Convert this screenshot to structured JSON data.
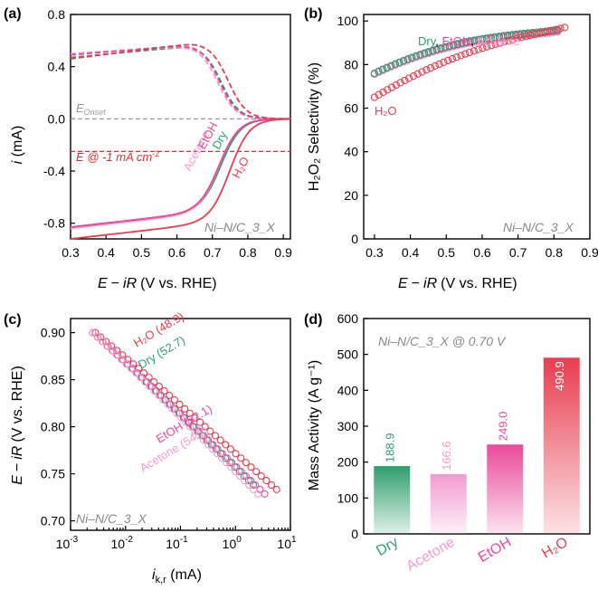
{
  "colors": {
    "dry": "#2e9e6e",
    "acetone": "#f29bd0",
    "etoh": "#e8499a",
    "h2o": "#e83d4f",
    "gray": "#9a9a9a",
    "refline": "#e03030"
  },
  "chart_data": [
    {
      "panel": "(a)",
      "type": "line",
      "xlabel_parts": [
        "E",
        "−",
        "iR",
        "(V vs. RHE)"
      ],
      "ylabel": "i (mA)",
      "xlim": [
        0.3,
        0.92
      ],
      "ylim": [
        -0.92,
        0.8
      ],
      "xticks": [
        "0.3",
        "0.4",
        "0.5",
        "0.6",
        "0.7",
        "0.8",
        "0.9"
      ],
      "yticks": [
        "0.8",
        "0.4",
        "0.0",
        "-0.4",
        "-0.8"
      ],
      "watermark": "Ni–N/C_3_X",
      "onset_label": "E",
      "onset_sub": "Onset",
      "ref_label": "E @ -1 mA cm",
      "ref_sup": "-2",
      "ref_value": -0.25,
      "series_labels": [
        "Acetone",
        "EtOH",
        "Dry",
        "H₂O"
      ],
      "series": [
        {
          "name": "Dry",
          "ring_hi": 0.56,
          "half_wave": 0.725,
          "limit": -0.83,
          "ring_lo": 0.47,
          "disk_half": 0.725
        },
        {
          "name": "Acetone",
          "ring_hi": 0.56,
          "half_wave": 0.715,
          "limit": -0.84,
          "ring_lo": 0.5,
          "disk_half": 0.72
        },
        {
          "name": "EtOH",
          "ring_hi": 0.57,
          "half_wave": 0.72,
          "limit": -0.83,
          "ring_lo": 0.49,
          "disk_half": 0.72
        },
        {
          "name": "H2O",
          "ring_hi": 0.58,
          "half_wave": 0.745,
          "limit": -0.92,
          "ring_lo": 0.46,
          "disk_half": 0.75
        }
      ]
    },
    {
      "panel": "(b)",
      "type": "scatter",
      "xlabel_parts": [
        "E",
        "−",
        "iR",
        "(V vs. RHE)"
      ],
      "ylabel": "H₂O₂ Selectivity (%)",
      "xlim": [
        0.27,
        0.9
      ],
      "ylim": [
        0,
        103
      ],
      "xticks": [
        "0.3",
        "0.4",
        "0.5",
        "0.6",
        "0.7",
        "0.8",
        "0.9"
      ],
      "yticks": [
        "100",
        "80",
        "60",
        "40",
        "20",
        "0"
      ],
      "watermark": "Ni–N/C_3_X",
      "labels": [
        "Dry",
        ", ",
        "EtOH",
        ", ",
        "Acetone",
        "H₂O"
      ],
      "series": [
        {
          "name": "Acetone",
          "x0": 0.3,
          "y0": 75.5,
          "x1": 0.81,
          "y1": 95
        },
        {
          "name": "EtOH",
          "x0": 0.3,
          "y0": 76,
          "x1": 0.81,
          "y1": 95.5
        },
        {
          "name": "Dry",
          "x0": 0.3,
          "y0": 76,
          "x1": 0.81,
          "y1": 96
        },
        {
          "name": "H2O",
          "x0": 0.3,
          "y0": 65,
          "x1": 0.83,
          "y1": 97
        }
      ]
    },
    {
      "panel": "(c)",
      "type": "scatter",
      "xlabel": "i",
      "xlabel_sub": "k,r",
      "xlabel_unit": " (mA)",
      "ylabel_parts": [
        "E",
        "−",
        "iR",
        "(V vs. RHE)"
      ],
      "xlim_log": [
        -3,
        1
      ],
      "ylim": [
        0.69,
        0.915
      ],
      "xticks_base": "10",
      "xticks_exp": [
        "-3",
        "-2",
        "-1",
        "0",
        "1"
      ],
      "yticks": [
        "0.90",
        "0.85",
        "0.80",
        "0.75",
        "0.70"
      ],
      "watermark": "Ni–N/C_3_X",
      "labels": [
        "H₂O (48.9)",
        "Dry (52.7)",
        "EtOH (52.1)",
        "Acetone (54.1)"
      ],
      "series": [
        {
          "name": "H2O",
          "log_i_at_0.90": -2.55,
          "tafel_mV_dec": 48.9
        },
        {
          "name": "Dry",
          "log_i_at_0.90": -2.6,
          "tafel_mV_dec": 52.7
        },
        {
          "name": "EtOH",
          "log_i_at_0.90": -2.6,
          "tafel_mV_dec": 52.1
        },
        {
          "name": "Acetone",
          "log_i_at_0.90": -2.6,
          "tafel_mV_dec": 54.1
        }
      ]
    },
    {
      "panel": "(d)",
      "type": "bar",
      "ylabel": "Mass Activity (A g⁻¹)",
      "ylim": [
        0,
        600
      ],
      "yticks": [
        "600",
        "500",
        "400",
        "300",
        "200",
        "100",
        "0"
      ],
      "title": "Ni–N/C_3_X @ 0.70 V",
      "categories": [
        "Dry",
        "Acetone",
        "EtOH",
        "H₂O"
      ],
      "values": [
        188.9,
        166.6,
        249.0,
        490.9
      ],
      "value_labels": [
        "188.9",
        "166.6",
        "249.0",
        "490.9"
      ]
    }
  ]
}
